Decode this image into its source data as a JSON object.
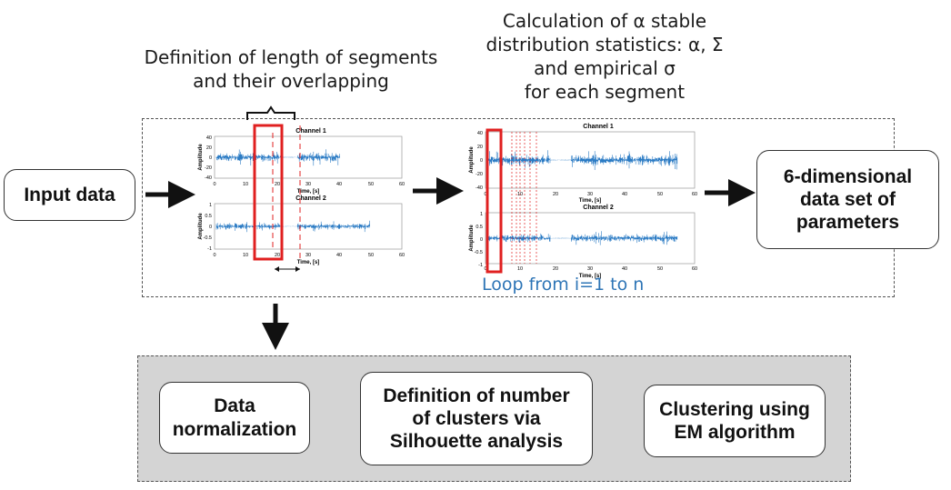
{
  "labels": {
    "segments_line1": "Definition of length of segments",
    "segments_line2": "and their overlapping",
    "stats_line1": "Calculation of α stable",
    "stats_line2": "distribution statistics: α, Σ",
    "stats_line3": "and empirical σ",
    "stats_line4": "for each segment",
    "loop": "Loop from i=1 to n"
  },
  "boxes": {
    "input": "Input data",
    "dataset_line1": "6-dimensional",
    "dataset_line2": "data set of",
    "dataset_line3": "parameters",
    "norm_line1": "Data",
    "norm_line2": "normalization",
    "clusters_line1": "Definition of number",
    "clusters_line2": "of clusters via",
    "clusters_line3": "Silhouette analysis",
    "em_line1": "Clustering using",
    "em_line2": "EM algorithm"
  },
  "plot1": {
    "ch1_title": "Channel 1",
    "ch2_title": "Channel 2",
    "ylabel": "Amplitude",
    "xlabel": "Time, [s]",
    "ch1_yticks": [
      "40",
      "20",
      "0",
      "-20",
      "-40"
    ],
    "ch2_yticks": [
      "1",
      "0.5",
      "0",
      "-0.5",
      "-1"
    ],
    "xticks": [
      "0",
      "10",
      "20",
      "30",
      "40",
      "50",
      "60"
    ]
  },
  "plot2": {
    "ch1_title": "Channel 1",
    "ch2_title": "Channel 2",
    "ylabel": "Amplitude",
    "xlabel": "Time, [s]",
    "ch1_yticks": [
      "40",
      "20",
      "0",
      "-20",
      "-40"
    ],
    "ch2_yticks": [
      "1",
      "0.5",
      "0",
      "-0.5",
      "-1"
    ],
    "xticks": [
      "0",
      "10",
      "20",
      "30",
      "40",
      "50",
      "60"
    ]
  },
  "colors": {
    "signal": "#2b7bc4",
    "highlight": "#e02020",
    "loop_text": "#2e75b6",
    "panel_gray": "#d4d4d4"
  }
}
